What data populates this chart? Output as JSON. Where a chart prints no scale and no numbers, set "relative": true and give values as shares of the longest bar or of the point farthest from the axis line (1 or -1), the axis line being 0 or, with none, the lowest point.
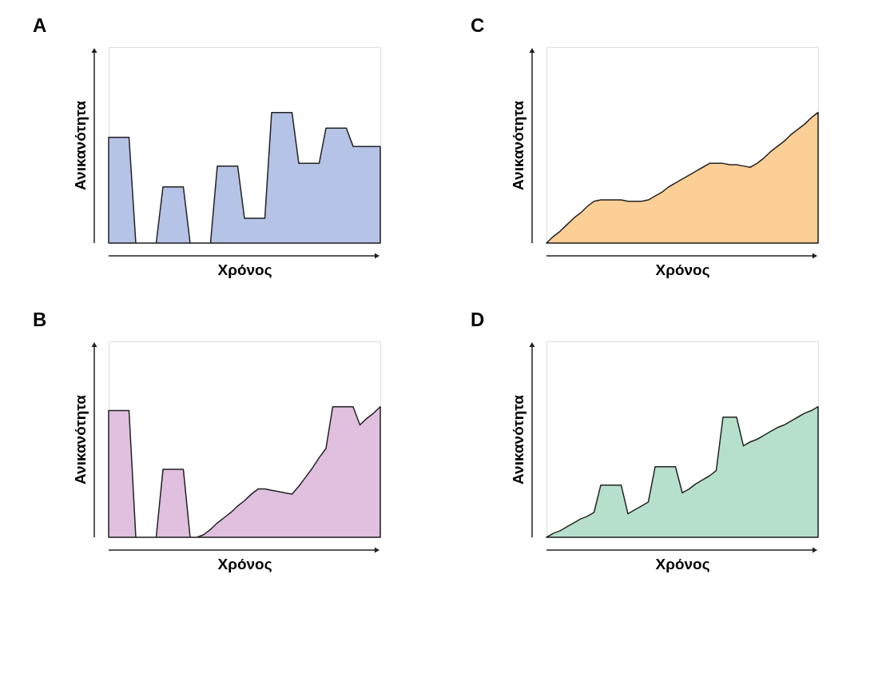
{
  "chart_data": [
    {
      "type": "area",
      "title": "A",
      "xlabel": "Χρόνος",
      "ylabel": "Ανικανότητα",
      "relative": true,
      "tick_labels": false,
      "categories": [
        null,
        null,
        null,
        null,
        null,
        null,
        null,
        null,
        null,
        null,
        null,
        null,
        null,
        null,
        null,
        null,
        null,
        null,
        null,
        null,
        null,
        null,
        null,
        null,
        null,
        null,
        null,
        null,
        null,
        null,
        null,
        null,
        null,
        null,
        null,
        null,
        null,
        null,
        null,
        null,
        null
      ],
      "series": [
        {
          "color": "#b4c3e6",
          "values": [
            0.81,
            0.81,
            0.81,
            0.81,
            0,
            0,
            0,
            0,
            0.43,
            0.43,
            0.43,
            0.43,
            0,
            0,
            0,
            0,
            0.59,
            0.59,
            0.59,
            0.59,
            0.19,
            0.19,
            0.19,
            0.19,
            1,
            1,
            1,
            1,
            0.61,
            0.61,
            0.61,
            0.61,
            0.88,
            0.88,
            0.88,
            0.88,
            0.74,
            0.74,
            0.74,
            0.74,
            0.74
          ]
        }
      ]
    },
    {
      "type": "area",
      "title": "C",
      "xlabel": "Χρόνος",
      "ylabel": "Ανικανότητα",
      "relative": true,
      "tick_labels": false,
      "categories": [
        null,
        null,
        null,
        null,
        null,
        null,
        null,
        null,
        null,
        null,
        null,
        null,
        null,
        null,
        null,
        null,
        null,
        null,
        null,
        null,
        null,
        null,
        null,
        null,
        null,
        null,
        null,
        null,
        null,
        null,
        null,
        null,
        null,
        null,
        null,
        null,
        null,
        null,
        null,
        null,
        null
      ],
      "series": [
        {
          "color": "#fccf96",
          "values": [
            0,
            0.05,
            0.09,
            0.14,
            0.19,
            0.23,
            0.28,
            0.32,
            0.33,
            0.33,
            0.33,
            0.33,
            0.32,
            0.32,
            0.32,
            0.33,
            0.36,
            0.39,
            0.43,
            0.46,
            0.49,
            0.52,
            0.55,
            0.58,
            0.61,
            0.61,
            0.61,
            0.6,
            0.6,
            0.59,
            0.58,
            0.61,
            0.65,
            0.7,
            0.74,
            0.78,
            0.83,
            0.87,
            0.91,
            0.96,
            1
          ]
        }
      ]
    },
    {
      "type": "area",
      "title": "B",
      "xlabel": "Χρόνος",
      "ylabel": "Ανικανότητα",
      "relative": true,
      "tick_labels": false,
      "categories": [
        null,
        null,
        null,
        null,
        null,
        null,
        null,
        null,
        null,
        null,
        null,
        null,
        null,
        null,
        null,
        null,
        null,
        null,
        null,
        null,
        null,
        null,
        null,
        null,
        null,
        null,
        null,
        null,
        null,
        null,
        null,
        null,
        null,
        null,
        null,
        null,
        null,
        null,
        null,
        null,
        null
      ],
      "series": [
        {
          "color": "#e0bfdf",
          "values": [
            0.97,
            0.97,
            0.97,
            0.97,
            0,
            0,
            0,
            0,
            0.52,
            0.52,
            0.52,
            0.52,
            0,
            0,
            0.02,
            0.06,
            0.11,
            0.15,
            0.19,
            0.24,
            0.28,
            0.33,
            0.37,
            0.37,
            0.36,
            0.35,
            0.34,
            0.33,
            0.39,
            0.46,
            0.53,
            0.61,
            0.68,
            1,
            1,
            1,
            1,
            0.86,
            0.91,
            0.95,
            1
          ]
        }
      ]
    },
    {
      "type": "area",
      "title": "D",
      "xlabel": "Χρόνος",
      "ylabel": "Ανικανότητα",
      "relative": true,
      "tick_labels": false,
      "categories": [
        null,
        null,
        null,
        null,
        null,
        null,
        null,
        null,
        null,
        null,
        null,
        null,
        null,
        null,
        null,
        null,
        null,
        null,
        null,
        null,
        null,
        null,
        null,
        null,
        null,
        null,
        null,
        null,
        null,
        null,
        null,
        null,
        null,
        null,
        null,
        null,
        null,
        null,
        null,
        null,
        null
      ],
      "series": [
        {
          "color": "#b6e0cc",
          "values": [
            0,
            0.03,
            0.05,
            0.08,
            0.11,
            0.14,
            0.16,
            0.19,
            0.4,
            0.4,
            0.4,
            0.4,
            0.18,
            0.21,
            0.24,
            0.27,
            0.54,
            0.54,
            0.54,
            0.54,
            0.34,
            0.37,
            0.41,
            0.44,
            0.47,
            0.51,
            0.92,
            0.92,
            0.92,
            0.7,
            0.73,
            0.75,
            0.78,
            0.81,
            0.84,
            0.86,
            0.89,
            0.92,
            0.95,
            0.97,
            1
          ]
        }
      ]
    }
  ]
}
